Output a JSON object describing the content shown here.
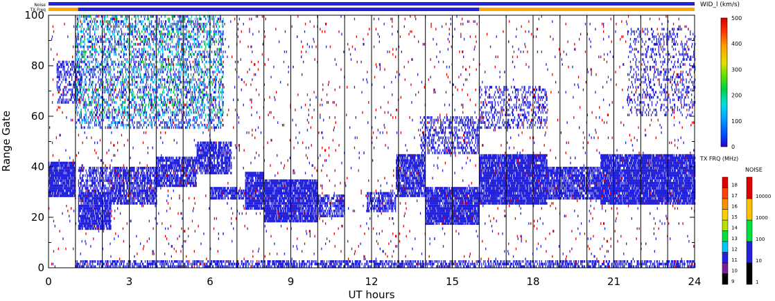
{
  "chart_data": {
    "type": "heatmap",
    "title": "",
    "xlabel": "UT hours",
    "ylabel": "Range Gate",
    "xlim": [
      0,
      24
    ],
    "ylim": [
      0,
      100
    ],
    "x_ticks": [
      0,
      3,
      6,
      9,
      12,
      15,
      18,
      21,
      24
    ],
    "y_ticks": [
      0,
      20,
      40,
      60,
      80,
      100
    ],
    "grid": false,
    "scan_boundaries_ut": [
      1.0,
      2.0,
      3.0,
      4.0,
      5.0,
      6.0,
      7.0,
      8.0,
      9.0,
      10.0,
      11.0,
      12.0,
      13.0,
      14.0,
      15.0,
      16.0,
      17.0,
      18.0,
      19.0,
      20.0,
      21.0,
      22.0,
      23.0
    ],
    "status_bars": {
      "noise_label": "Noise",
      "txfreq_label": "TX Freq",
      "noise_color": "#2222dd",
      "txfreq_segments": [
        {
          "start": 0,
          "end": 1.1,
          "color": "#ffa500"
        },
        {
          "start": 1.1,
          "end": 16.0,
          "color": "#2222dd"
        },
        {
          "start": 16.0,
          "end": 24,
          "color": "#ffa500"
        }
      ]
    },
    "colorbar_width": {
      "label": "WID_l (km/s)",
      "ticks": [
        0,
        100,
        200,
        300,
        400,
        500
      ],
      "range": [
        0,
        500
      ]
    },
    "colorbar_txfreq": {
      "label": "TX FRQ (MHz)",
      "levels": [
        9,
        10,
        11,
        12,
        13,
        14,
        15,
        16,
        17,
        18
      ],
      "colors": [
        "#000000",
        "#7a1f9a",
        "#2222dd",
        "#00c8ff",
        "#00e040",
        "#b8e000",
        "#ffd000",
        "#ff9000",
        "#ff4000",
        "#e00000"
      ]
    },
    "colorbar_noise": {
      "label": "NOISE",
      "levels": [
        "1",
        "10",
        "100",
        "1000",
        "10000"
      ],
      "colors": [
        "#000000",
        "#2222dd",
        "#00e040",
        "#ffc000",
        "#e00000"
      ]
    },
    "bands": [
      {
        "t0": 0.0,
        "t1": 1.0,
        "g0": 28,
        "g1": 42,
        "density": 0.85,
        "color": "#2222dd"
      },
      {
        "t0": 1.1,
        "t1": 2.3,
        "g0": 15,
        "g1": 30,
        "density": 0.8,
        "color": "#2222dd"
      },
      {
        "t0": 1.1,
        "t1": 2.3,
        "g0": 30,
        "g1": 40,
        "density": 0.45,
        "color": "#2222dd"
      },
      {
        "t0": 2.3,
        "t1": 4.0,
        "g0": 25,
        "g1": 40,
        "density": 0.7,
        "color": "#2222dd"
      },
      {
        "t0": 4.0,
        "t1": 5.5,
        "g0": 32,
        "g1": 44,
        "density": 0.7,
        "color": "#2222dd"
      },
      {
        "t0": 5.5,
        "t1": 6.8,
        "g0": 37,
        "g1": 50,
        "density": 0.7,
        "color": "#2222dd"
      },
      {
        "t0": 6.0,
        "t1": 7.0,
        "g0": 27,
        "g1": 32,
        "density": 0.7,
        "color": "#2222dd"
      },
      {
        "t0": 7.0,
        "t1": 7.3,
        "g0": 27,
        "g1": 31,
        "density": 0.6,
        "color": "#2222dd"
      },
      {
        "t0": 7.3,
        "t1": 8.0,
        "g0": 23,
        "g1": 38,
        "density": 0.85,
        "color": "#2222dd"
      },
      {
        "t0": 8.0,
        "t1": 10.0,
        "g0": 18,
        "g1": 35,
        "density": 0.85,
        "color": "#2222dd"
      },
      {
        "t0": 10.0,
        "t1": 11.0,
        "g0": 20,
        "g1": 29,
        "density": 0.55,
        "color": "#2222dd"
      },
      {
        "t0": 11.8,
        "t1": 12.9,
        "g0": 22,
        "g1": 30,
        "density": 0.55,
        "color": "#2222dd"
      },
      {
        "t0": 12.9,
        "t1": 14.0,
        "g0": 28,
        "g1": 45,
        "density": 0.75,
        "color": "#2222dd"
      },
      {
        "t0": 14.0,
        "t1": 16.0,
        "g0": 17,
        "g1": 32,
        "density": 0.85,
        "color": "#2222dd"
      },
      {
        "t0": 13.8,
        "t1": 16.0,
        "g0": 45,
        "g1": 60,
        "density": 0.35,
        "color": "#2222dd"
      },
      {
        "t0": 16.0,
        "t1": 18.5,
        "g0": 25,
        "g1": 45,
        "density": 0.85,
        "color": "#2222dd"
      },
      {
        "t0": 18.5,
        "t1": 20.5,
        "g0": 27,
        "g1": 40,
        "density": 0.75,
        "color": "#2222dd"
      },
      {
        "t0": 20.5,
        "t1": 24.0,
        "g0": 25,
        "g1": 45,
        "density": 0.85,
        "color": "#2222dd"
      },
      {
        "t0": 1.0,
        "t1": 24.0,
        "g0": 0,
        "g1": 3,
        "density": 0.5,
        "color": "#2222dd"
      },
      {
        "t0": 0.3,
        "t1": 1.2,
        "g0": 65,
        "g1": 82,
        "density": 0.35,
        "color": "#2222dd"
      },
      {
        "t0": 1.0,
        "t1": 6.5,
        "g0": 55,
        "g1": 100,
        "density": 0.2,
        "color": "#2222dd"
      },
      {
        "t0": 16.0,
        "t1": 18.5,
        "g0": 55,
        "g1": 72,
        "density": 0.25,
        "color": "#2222dd"
      },
      {
        "t0": 21.5,
        "t1": 24.0,
        "g0": 60,
        "g1": 95,
        "density": 0.18,
        "color": "#2222dd"
      },
      {
        "t0": 1.0,
        "t1": 6.5,
        "g0": 55,
        "g1": 100,
        "density": 0.1,
        "color": "#00c8ff"
      },
      {
        "t0": 1.0,
        "t1": 6.5,
        "g0": 60,
        "g1": 100,
        "density": 0.05,
        "color": "#00c020"
      },
      {
        "t0": 0.0,
        "t1": 24.0,
        "g0": 0,
        "g1": 100,
        "density": 0.012,
        "color": "#e00000"
      },
      {
        "t0": 0.0,
        "t1": 24.0,
        "g0": 0,
        "g1": 100,
        "density": 0.01,
        "color": "#2222dd"
      }
    ]
  }
}
